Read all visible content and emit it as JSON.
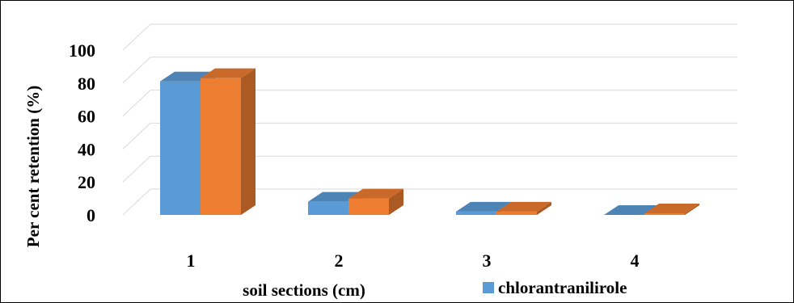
{
  "chart_data": {
    "type": "bar",
    "categories": [
      "1",
      "2",
      "3",
      "4"
    ],
    "series": [
      {
        "name": "chlorantranilirole",
        "values": [
          81,
          8,
          2,
          0
        ],
        "color": "#5b9bd5"
      },
      {
        "name": "",
        "values": [
          83,
          10,
          2,
          1
        ],
        "color": "#ed7d31"
      }
    ],
    "ylim": [
      0,
      100
    ],
    "yticks": [
      0,
      20,
      40,
      60,
      80,
      100
    ],
    "xlabel": "soil sections (cm)",
    "ylabel": "Per cent retention (%)",
    "grid": true,
    "legend": "bottom",
    "style": "3d-clustered-column"
  }
}
